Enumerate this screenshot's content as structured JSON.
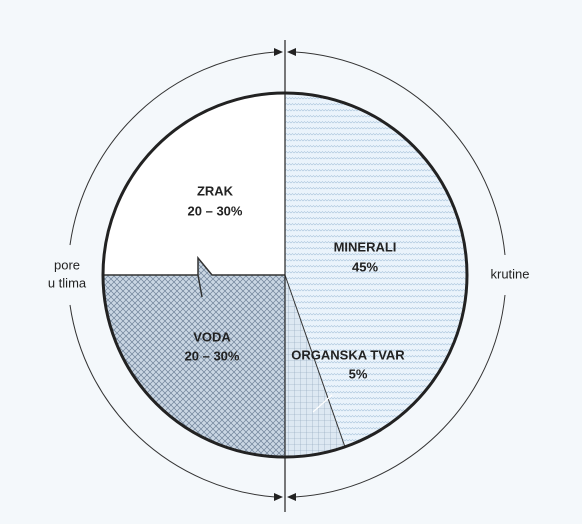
{
  "side_labels": {
    "left": [
      "pore",
      "u tlima"
    ],
    "right": "krutine"
  },
  "segments": [
    {
      "name": "ZRAK",
      "value": "20 – 30%"
    },
    {
      "name": "MINERALI",
      "value": "45%"
    },
    {
      "name": "VODA",
      "value": "20 – 30%"
    },
    {
      "name": "ORGANSKA TVAR",
      "value": "5%"
    }
  ]
}
